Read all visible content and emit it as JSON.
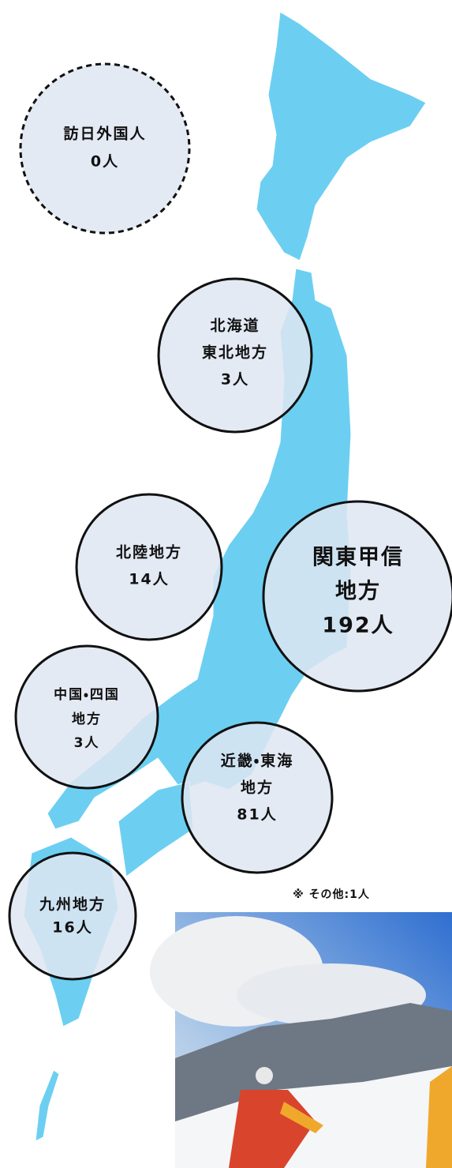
{
  "regions": [
    {
      "lines": [
        "訪日外国人"
      ],
      "count": "0人"
    },
    {
      "lines": [
        "北海道",
        "東北地方"
      ],
      "count": "3人"
    },
    {
      "lines": [
        "北陸地方"
      ],
      "count": "14人"
    },
    {
      "lines": [
        "関東甲信",
        "地方"
      ],
      "count": "192人"
    },
    {
      "lines": [
        "中国・四国",
        "地方"
      ],
      "count": "3人"
    },
    {
      "lines": [
        "近畿・東海",
        "地方"
      ],
      "count": "81人"
    },
    {
      "lines": [
        "九州地方"
      ],
      "count": "16人"
    }
  ],
  "note": "※ その他:1人"
}
